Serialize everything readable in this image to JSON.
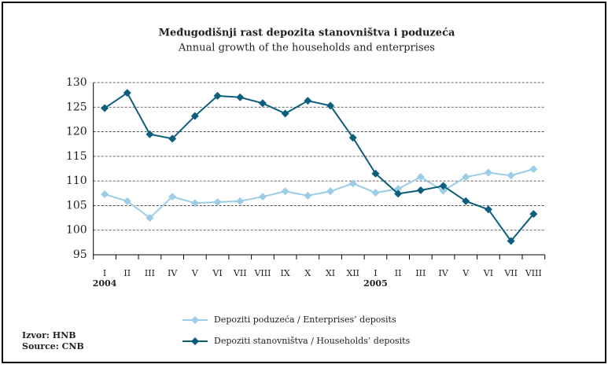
{
  "chart_data": {
    "type": "line",
    "title": "Međugodišnji rast depozita stanovništva i poduzeća",
    "subtitle": "Annual growth of the households and enterprises",
    "categories": [
      "I",
      "II",
      "III",
      "IV",
      "V",
      "VI",
      "VII",
      "VIII",
      "IX",
      "X",
      "XI",
      "XII",
      "I",
      "II",
      "III",
      "IV",
      "V",
      "VI",
      "VII",
      "VIII"
    ],
    "years": [
      "2004",
      null,
      null,
      null,
      null,
      null,
      null,
      null,
      null,
      null,
      null,
      null,
      "2005",
      null,
      null,
      null,
      null,
      null,
      null,
      null
    ],
    "series": [
      {
        "name": "Depoziti poduzeća / Enterprises’ deposits",
        "color": "#9ccde6",
        "values": [
          107.3,
          105.9,
          102.5,
          106.8,
          105.5,
          105.7,
          105.9,
          106.8,
          107.9,
          107.0,
          107.9,
          109.5,
          107.6,
          108.4,
          110.8,
          108.0,
          110.8,
          111.7,
          111.1,
          112.4
        ]
      },
      {
        "name": "Depoziti stanovništva / Households’ deposits",
        "color": "#0b5e7d",
        "values": [
          124.8,
          127.9,
          119.5,
          118.6,
          123.2,
          127.3,
          127.0,
          125.8,
          123.7,
          126.3,
          125.3,
          118.8,
          111.5,
          107.4,
          108.1,
          109.0,
          105.9,
          104.2,
          97.8,
          103.3
        ]
      }
    ],
    "ylim": [
      95,
      130
    ],
    "yticks": [
      95,
      100,
      105,
      110,
      115,
      120,
      125,
      130
    ],
    "grid": true,
    "source": [
      "Izvor: HNB",
      "Source: CNB"
    ]
  }
}
